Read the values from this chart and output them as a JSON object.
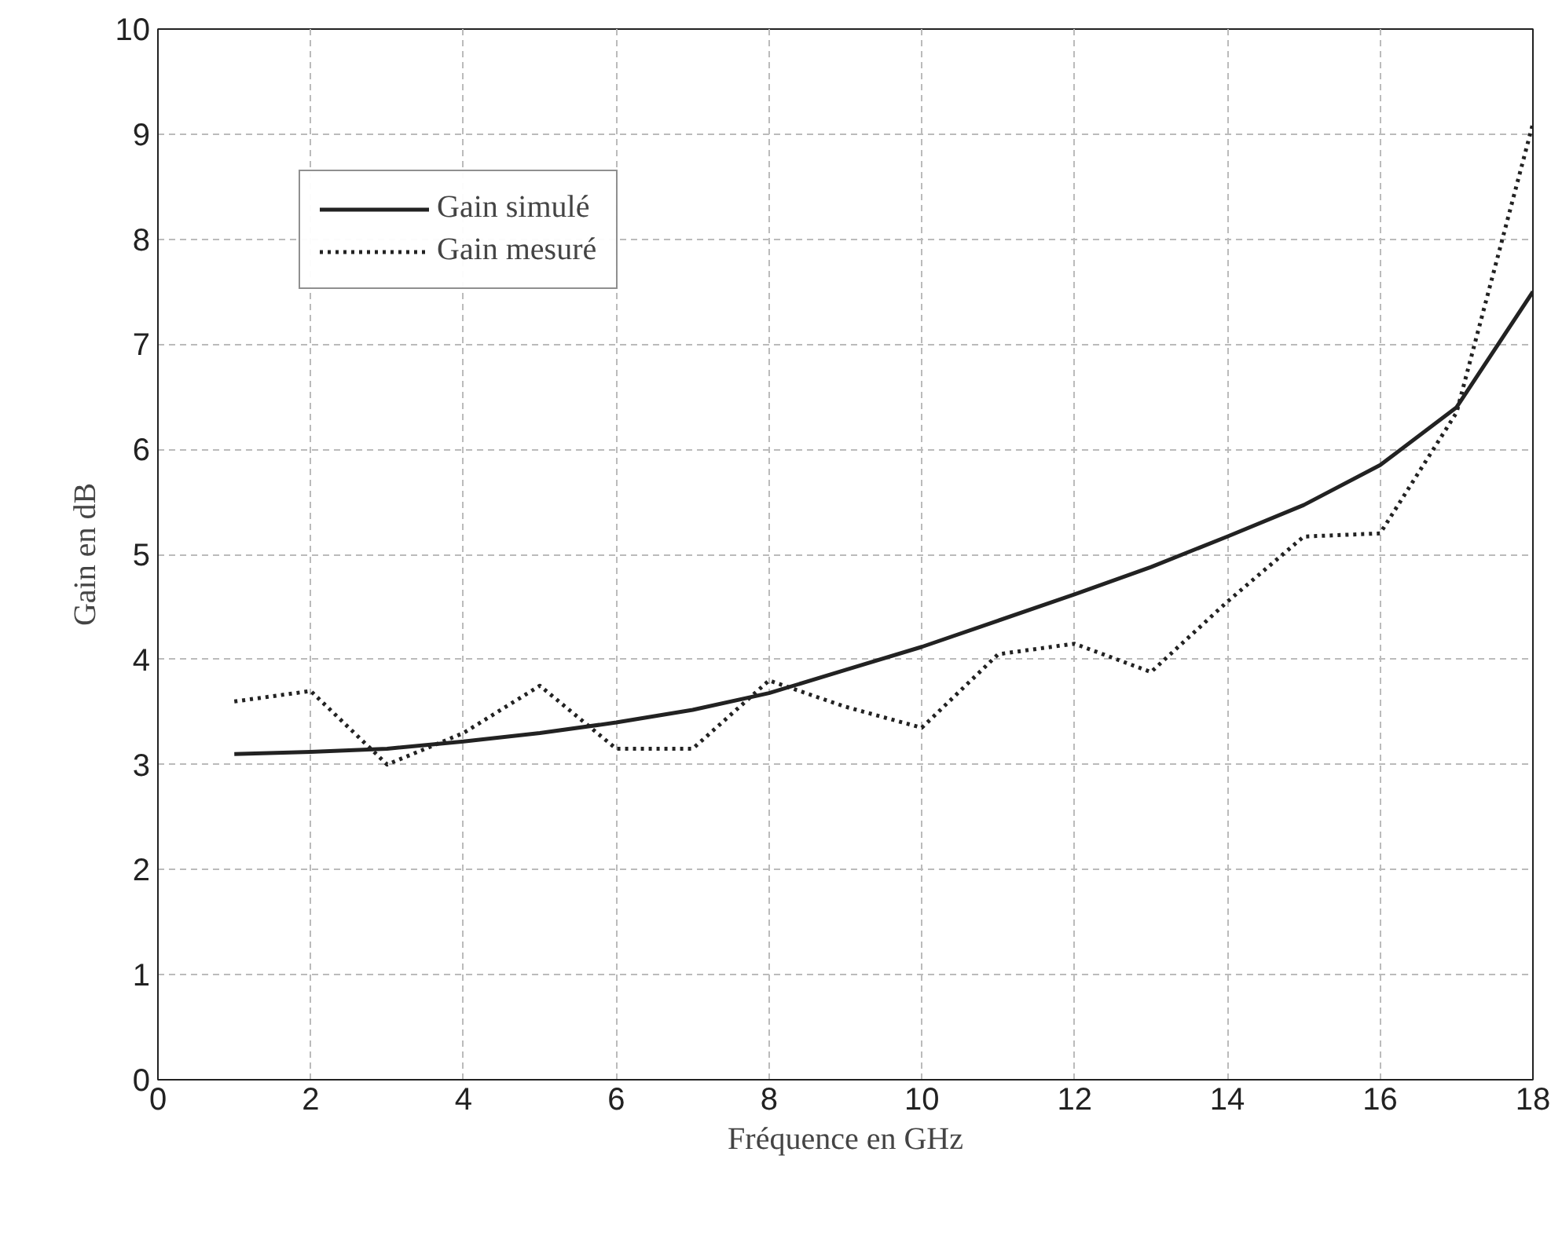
{
  "chart_data": {
    "type": "line",
    "xlabel": "Fréquence en GHz",
    "ylabel": "Gain en dB",
    "x": [
      1,
      2,
      3,
      4,
      5,
      6,
      7,
      8,
      9,
      10,
      11,
      12,
      13,
      14,
      15,
      16,
      17,
      18
    ],
    "series": [
      {
        "name": "Gain simulé",
        "color": "#222222",
        "line_style": "solid",
        "values": [
          3.1,
          3.12,
          3.15,
          3.22,
          3.3,
          3.4,
          3.52,
          3.68,
          3.9,
          4.12,
          4.37,
          4.62,
          4.88,
          5.17,
          5.47,
          5.85,
          6.4,
          7.5
        ]
      },
      {
        "name": "Gain mesuré",
        "color": "#222222",
        "line_style": "dotted",
        "values": [
          3.6,
          3.7,
          3.0,
          3.3,
          3.75,
          3.15,
          3.15,
          3.8,
          3.55,
          3.35,
          4.05,
          4.15,
          3.88,
          4.55,
          5.17,
          5.2,
          6.35,
          9.1
        ]
      }
    ],
    "xlim": [
      0,
      18
    ],
    "ylim": [
      0,
      10
    ],
    "xticks": [
      0,
      2,
      4,
      6,
      8,
      10,
      12,
      14,
      16,
      18
    ],
    "yticks": [
      0,
      1,
      2,
      3,
      4,
      5,
      6,
      7,
      8,
      9,
      10
    ],
    "grid": true,
    "legend": "top left"
  }
}
